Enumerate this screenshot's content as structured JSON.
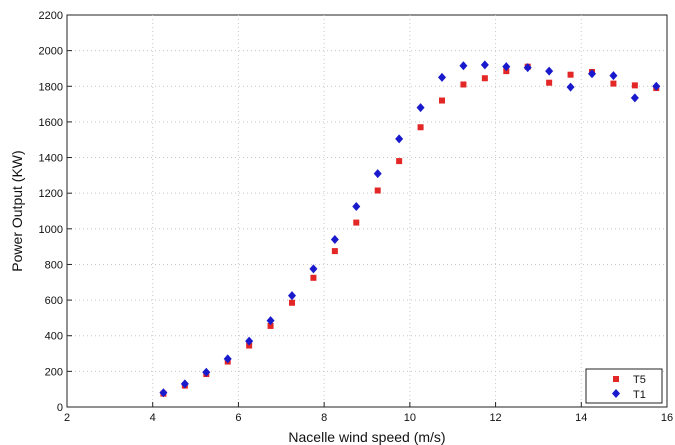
{
  "chart_data": {
    "type": "scatter",
    "title": "",
    "xlabel": "Nacelle wind speed (m/s)",
    "ylabel": "Power Output (KW)",
    "xlim": [
      2,
      16
    ],
    "ylim": [
      0,
      2200
    ],
    "x_ticks": [
      "2",
      "4",
      "6",
      "8",
      "10",
      "12",
      "14",
      "16"
    ],
    "y_ticks": [
      "0",
      "200",
      "400",
      "600",
      "800",
      "1000",
      "1200",
      "1400",
      "1600",
      "1800",
      "2000",
      "2200"
    ],
    "grid": true,
    "legend_position": "bottom-right",
    "series": [
      {
        "name": "T5",
        "marker": "square",
        "color": "#e32626",
        "x": [
          4.25,
          4.75,
          5.25,
          5.75,
          6.25,
          6.75,
          7.25,
          7.75,
          8.25,
          8.75,
          9.25,
          9.75,
          10.25,
          10.75,
          11.25,
          11.75,
          12.25,
          12.75,
          13.25,
          13.75,
          14.25,
          14.75,
          15.25,
          15.75
        ],
        "y": [
          75,
          120,
          185,
          255,
          345,
          455,
          585,
          725,
          875,
          1035,
          1215,
          1380,
          1570,
          1720,
          1810,
          1845,
          1885,
          1910,
          1820,
          1865,
          1880,
          1815,
          1805,
          1790
        ]
      },
      {
        "name": "T1",
        "marker": "diamond",
        "color": "#1a1acd",
        "x": [
          4.25,
          4.75,
          5.25,
          5.75,
          6.25,
          6.75,
          7.25,
          7.75,
          8.25,
          8.75,
          9.25,
          9.75,
          10.25,
          10.75,
          11.25,
          11.75,
          12.25,
          12.75,
          13.25,
          13.75,
          14.25,
          14.75,
          15.25,
          15.75
        ],
        "y": [
          80,
          130,
          195,
          270,
          370,
          485,
          625,
          775,
          940,
          1125,
          1310,
          1505,
          1680,
          1850,
          1915,
          1920,
          1910,
          1905,
          1885,
          1795,
          1870,
          1860,
          1735,
          1800
        ]
      }
    ]
  }
}
